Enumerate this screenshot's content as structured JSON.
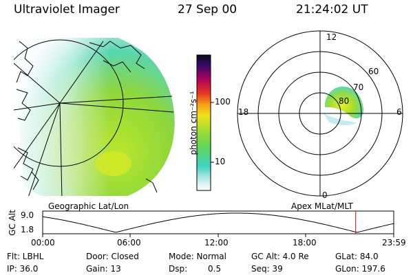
{
  "header": {
    "instrument": "Ultraviolet Imager",
    "date": "27 Sep 00",
    "time": "21:24:02 UT"
  },
  "colorbar": {
    "unit_label": "photon cm⁻²s⁻¹",
    "ticks": [
      "100",
      "10"
    ]
  },
  "left_panel": {
    "caption": "Geographic Lat/Lon"
  },
  "right_panel": {
    "caption": "Apex MLat/MLT",
    "mlt_labels": [
      "12",
      "18",
      "6",
      "0"
    ],
    "lat_labels": [
      "60",
      "70",
      "80"
    ]
  },
  "altitude_plot": {
    "ylabel": "GC Alt",
    "ymax": "9.0",
    "ymin": "1.8",
    "x_ticks": [
      "00:00",
      "06:00",
      "12:00",
      "18:00",
      "23:59"
    ],
    "marker_time_hours": 21.4
  },
  "info": {
    "flt": "Flt: LBHL",
    "ip": "IP: 36.0",
    "door": "Door: Closed",
    "gain": "Gain: 13",
    "mode": "Mode: Normal",
    "dsp_label": "Dsp:",
    "dsp_value": "0.5",
    "gc_alt": "GC Alt: 4.0 Re",
    "seq": "Seq: 39",
    "glat": "GLat:  84.0",
    "glon": "GLon: 197.6"
  },
  "colors": {
    "marker": "#cc0000",
    "emission_green": "#9cd93a",
    "emission_cyan": "#3fd3c0"
  }
}
